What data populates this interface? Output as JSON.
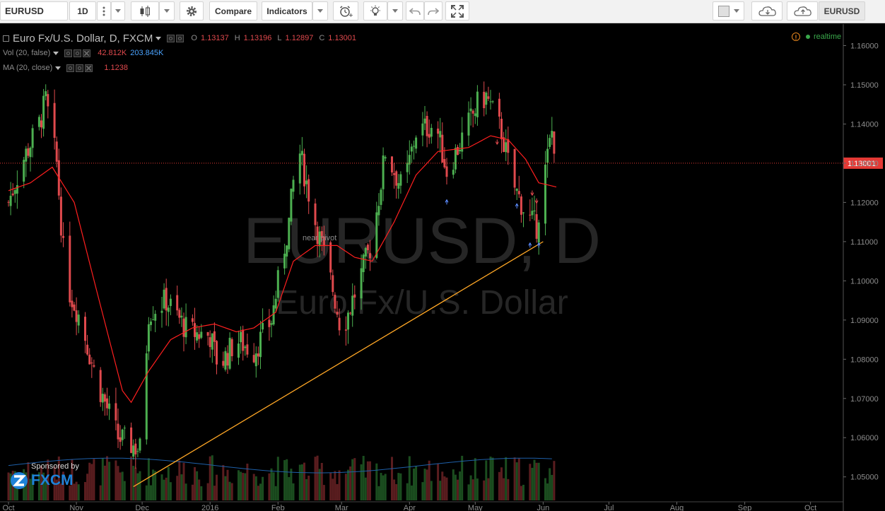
{
  "toolbar": {
    "symbol": "EURUSD",
    "interval": "1D",
    "compare_label": "Compare",
    "indicators_label": "Indicators",
    "right_symbol": "EURUSD"
  },
  "legend": {
    "title": "Euro Fx/U.S. Dollar, D, FXCM",
    "o_label": "O",
    "o_value": "1.13137",
    "h_label": "H",
    "h_value": "1.13196",
    "l_label": "L",
    "l_value": "1.12897",
    "c_label": "C",
    "c_value": "1.13001",
    "vol_label": "Vol (20, false)",
    "vol_value_1": "42.812K",
    "vol_value_2": "203.845K",
    "ma_label": "MA (20, close)",
    "ma_value": "1.1238"
  },
  "status": {
    "realtime": "realtime"
  },
  "sponsor": {
    "by": "Sponsored by",
    "name": "FXCM"
  },
  "colors": {
    "up": "#4caf50",
    "down": "#e0494d",
    "ma": "#ff1f1f",
    "trendline": "#ffa726",
    "volume_ma": "#1e5fa8",
    "price_label_bg": "#e53935",
    "axis_text": "#8c8c8c"
  },
  "chart_data": {
    "type": "candlestick",
    "title": "Euro Fx/U.S. Dollar, D, FXCM",
    "watermark": [
      "EURUSD, D",
      "Euro Fx/U.S. Dollar"
    ],
    "ylim": [
      1.044,
      1.1655
    ],
    "yticks": [
      "1.16000",
      "1.15000",
      "1.14000",
      "1.13000",
      "1.12000",
      "1.11000",
      "1.10000",
      "1.09000",
      "1.08000",
      "1.07000",
      "1.06000",
      "1.05000"
    ],
    "xticks": [
      {
        "label": "Oct",
        "day": 0
      },
      {
        "label": "Nov",
        "day": 31
      },
      {
        "label": "Dec",
        "day": 61
      },
      {
        "label": "2016",
        "day": 92
      },
      {
        "label": "Feb",
        "day": 123
      },
      {
        "label": "Mar",
        "day": 152
      },
      {
        "label": "Apr",
        "day": 183
      },
      {
        "label": "May",
        "day": 213
      },
      {
        "label": "Jun",
        "day": 244
      },
      {
        "label": "Jul",
        "day": 274
      },
      {
        "label": "Aug",
        "day": 305
      },
      {
        "label": "Sep",
        "day": 336
      },
      {
        "label": "Oct",
        "day": 366
      }
    ],
    "last_price": "1.13001",
    "price_path": [
      {
        "day": 0,
        "close": 1.12
      },
      {
        "day": 6,
        "close": 1.13
      },
      {
        "day": 14,
        "close": 1.14
      },
      {
        "day": 17,
        "close": 1.146
      },
      {
        "day": 22,
        "close": 1.13
      },
      {
        "day": 26,
        "close": 1.1
      },
      {
        "day": 33,
        "close": 1.09
      },
      {
        "day": 40,
        "close": 1.075
      },
      {
        "day": 50,
        "close": 1.06
      },
      {
        "day": 60,
        "close": 1.057
      },
      {
        "day": 64,
        "close": 1.092
      },
      {
        "day": 72,
        "close": 1.095
      },
      {
        "day": 82,
        "close": 1.087
      },
      {
        "day": 92,
        "close": 1.086
      },
      {
        "day": 96,
        "close": 1.078
      },
      {
        "day": 104,
        "close": 1.085
      },
      {
        "day": 112,
        "close": 1.082
      },
      {
        "day": 120,
        "close": 1.09
      },
      {
        "day": 128,
        "close": 1.115
      },
      {
        "day": 132,
        "close": 1.135
      },
      {
        "day": 140,
        "close": 1.115
      },
      {
        "day": 148,
        "close": 1.098
      },
      {
        "day": 152,
        "close": 1.087
      },
      {
        "day": 160,
        "close": 1.1
      },
      {
        "day": 166,
        "close": 1.11
      },
      {
        "day": 172,
        "close": 1.133
      },
      {
        "day": 180,
        "close": 1.123
      },
      {
        "day": 186,
        "close": 1.138
      },
      {
        "day": 195,
        "close": 1.14
      },
      {
        "day": 200,
        "close": 1.128
      },
      {
        "day": 206,
        "close": 1.135
      },
      {
        "day": 214,
        "close": 1.145
      },
      {
        "day": 218,
        "close": 1.147
      },
      {
        "day": 225,
        "close": 1.138
      },
      {
        "day": 230,
        "close": 1.125
      },
      {
        "day": 237,
        "close": 1.116
      },
      {
        "day": 241,
        "close": 1.114
      },
      {
        "day": 244,
        "close": 1.125
      },
      {
        "day": 248,
        "close": 1.138
      },
      {
        "day": 251,
        "close": 1.13
      }
    ],
    "ma_path": [
      {
        "day": 0,
        "value": 1.123
      },
      {
        "day": 10,
        "value": 1.125
      },
      {
        "day": 20,
        "value": 1.129
      },
      {
        "day": 30,
        "value": 1.12
      },
      {
        "day": 40,
        "value": 1.098
      },
      {
        "day": 52,
        "value": 1.072
      },
      {
        "day": 56,
        "value": 1.069
      },
      {
        "day": 64,
        "value": 1.077
      },
      {
        "day": 74,
        "value": 1.085
      },
      {
        "day": 84,
        "value": 1.088
      },
      {
        "day": 94,
        "value": 1.089
      },
      {
        "day": 104,
        "value": 1.087
      },
      {
        "day": 112,
        "value": 1.088
      },
      {
        "day": 122,
        "value": 1.092
      },
      {
        "day": 130,
        "value": 1.105
      },
      {
        "day": 140,
        "value": 1.109
      },
      {
        "day": 150,
        "value": 1.109
      },
      {
        "day": 158,
        "value": 1.106
      },
      {
        "day": 166,
        "value": 1.105
      },
      {
        "day": 176,
        "value": 1.115
      },
      {
        "day": 186,
        "value": 1.127
      },
      {
        "day": 196,
        "value": 1.133
      },
      {
        "day": 210,
        "value": 1.134
      },
      {
        "day": 220,
        "value": 1.137
      },
      {
        "day": 228,
        "value": 1.136
      },
      {
        "day": 236,
        "value": 1.131
      },
      {
        "day": 242,
        "value": 1.125
      },
      {
        "day": 251,
        "value": 1.1238
      }
    ],
    "trendline": {
      "from": {
        "day": 57,
        "price": 1.0475
      },
      "to": {
        "day": 244,
        "price": 1.11
      }
    },
    "annotation": "near pivot",
    "volume": {
      "max": 160000,
      "ma_level": 0.38
    }
  }
}
